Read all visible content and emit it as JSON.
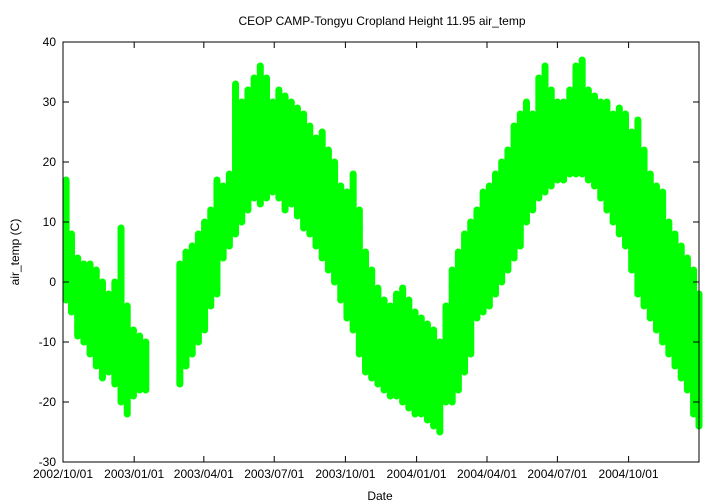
{
  "chart_data": {
    "type": "scatter",
    "title": "CEOP CAMP-Tongyu Cropland Height 11.95 air_temp",
    "xlabel": "Date",
    "ylabel": "air_temp (C)",
    "x_tick_labels": [
      "2002/10/01",
      "2003/01/01",
      "2003/04/01",
      "2003/07/01",
      "2003/10/01",
      "2004/01/01",
      "2004/04/01",
      "2004/07/01",
      "2004/10/01"
    ],
    "y_ticks": [
      -30,
      -20,
      -10,
      0,
      10,
      20,
      30,
      40
    ],
    "ylim": [
      -30,
      40
    ],
    "xlim": [
      "2002/10/01",
      "2004/12/31"
    ],
    "grid": false,
    "legend": "none",
    "marker_color": "#00ff00",
    "series": [
      {
        "x": [
          "2002/10/05",
          "2002/10/12",
          "2002/10/20",
          "2002/10/28",
          "2002/11/05",
          "2002/11/13",
          "2002/11/21",
          "2002/11/29",
          "2002/12/07",
          "2002/12/15",
          "2002/12/23",
          "2002/12/31",
          "2003/01/08",
          "2003/01/16",
          "2003/03/01",
          "2003/03/09",
          "2003/03/17",
          "2003/03/25",
          "2003/04/02",
          "2003/04/10",
          "2003/04/18",
          "2003/04/26",
          "2003/05/04",
          "2003/05/12",
          "2003/05/20",
          "2003/05/28",
          "2003/06/05",
          "2003/06/13",
          "2003/06/21",
          "2003/06/29",
          "2003/07/07",
          "2003/07/15",
          "2003/07/23",
          "2003/07/31",
          "2003/08/08",
          "2003/08/16",
          "2003/08/24",
          "2003/09/01",
          "2003/09/09",
          "2003/09/17",
          "2003/09/25",
          "2003/10/03",
          "2003/10/11",
          "2003/10/19",
          "2003/10/27",
          "2003/11/04",
          "2003/11/12",
          "2003/11/20",
          "2003/11/28",
          "2003/12/06",
          "2003/12/14",
          "2003/12/22",
          "2003/12/30",
          "2004/01/07",
          "2004/01/15",
          "2004/01/23",
          "2004/01/31",
          "2004/02/08",
          "2004/02/16",
          "2004/02/24",
          "2004/03/03",
          "2004/03/11",
          "2004/03/19",
          "2004/03/27",
          "2004/04/04",
          "2004/04/12",
          "2004/04/20",
          "2004/04/28",
          "2004/05/06",
          "2004/05/14",
          "2004/05/22",
          "2004/05/30",
          "2004/06/07",
          "2004/06/15",
          "2004/06/23",
          "2004/07/01",
          "2004/07/09",
          "2004/07/17",
          "2004/07/25",
          "2004/08/02",
          "2004/08/10",
          "2004/08/18",
          "2004/08/26",
          "2004/09/03",
          "2004/09/11",
          "2004/09/19",
          "2004/09/27",
          "2004/10/05",
          "2004/10/13",
          "2004/10/21",
          "2004/10/29",
          "2004/11/06",
          "2004/11/14",
          "2004/11/22",
          "2004/11/30",
          "2004/12/08",
          "2004/12/16",
          "2004/12/24",
          "2004/12/31"
        ],
        "y_min": [
          -3,
          -5,
          -9,
          -10,
          -12,
          -14,
          -16,
          -15,
          -17,
          -20,
          -22,
          -19,
          -18,
          -18,
          -17,
          -14,
          -12,
          -10,
          -8,
          -4,
          -2,
          4,
          6,
          8,
          10,
          12,
          14,
          13,
          14,
          15,
          14,
          12,
          13,
          11,
          9,
          8,
          6,
          4,
          2,
          0,
          -3,
          -6,
          -8,
          -12,
          -15,
          -16,
          -17,
          -18,
          -19,
          -19,
          -20,
          -21,
          -22,
          -22,
          -23,
          -24,
          -25,
          -20,
          -20,
          -18,
          -15,
          -12,
          -6,
          -5,
          -4,
          -2,
          0,
          2,
          4,
          6,
          10,
          12,
          14,
          15,
          16,
          17,
          17,
          18,
          18,
          18,
          17,
          16,
          14,
          12,
          10,
          8,
          6,
          2,
          -2,
          -4,
          -6,
          -8,
          -10,
          -12,
          -14,
          -16,
          -18,
          -22,
          -24
        ],
        "y_max": [
          17,
          8,
          4,
          3,
          3,
          2,
          0,
          -2,
          0,
          9,
          -4,
          -8,
          -9,
          -10,
          3,
          5,
          6,
          8,
          10,
          12,
          17,
          16,
          18,
          33,
          30,
          32,
          34,
          36,
          34,
          30,
          32,
          31,
          30,
          29,
          28,
          26,
          24,
          25,
          22,
          20,
          16,
          15,
          18,
          12,
          5,
          2,
          -1,
          -3,
          -4,
          -2,
          -1,
          -3,
          -5,
          -6,
          -7,
          -8,
          -10,
          -4,
          2,
          5,
          8,
          10,
          12,
          15,
          16,
          18,
          20,
          22,
          26,
          28,
          30,
          28,
          34,
          36,
          32,
          30,
          30,
          32,
          36,
          37,
          32,
          31,
          30,
          30,
          28,
          29,
          28,
          25,
          27,
          22,
          18,
          16,
          15,
          10,
          8,
          6,
          4,
          2,
          -2
        ]
      }
    ]
  }
}
